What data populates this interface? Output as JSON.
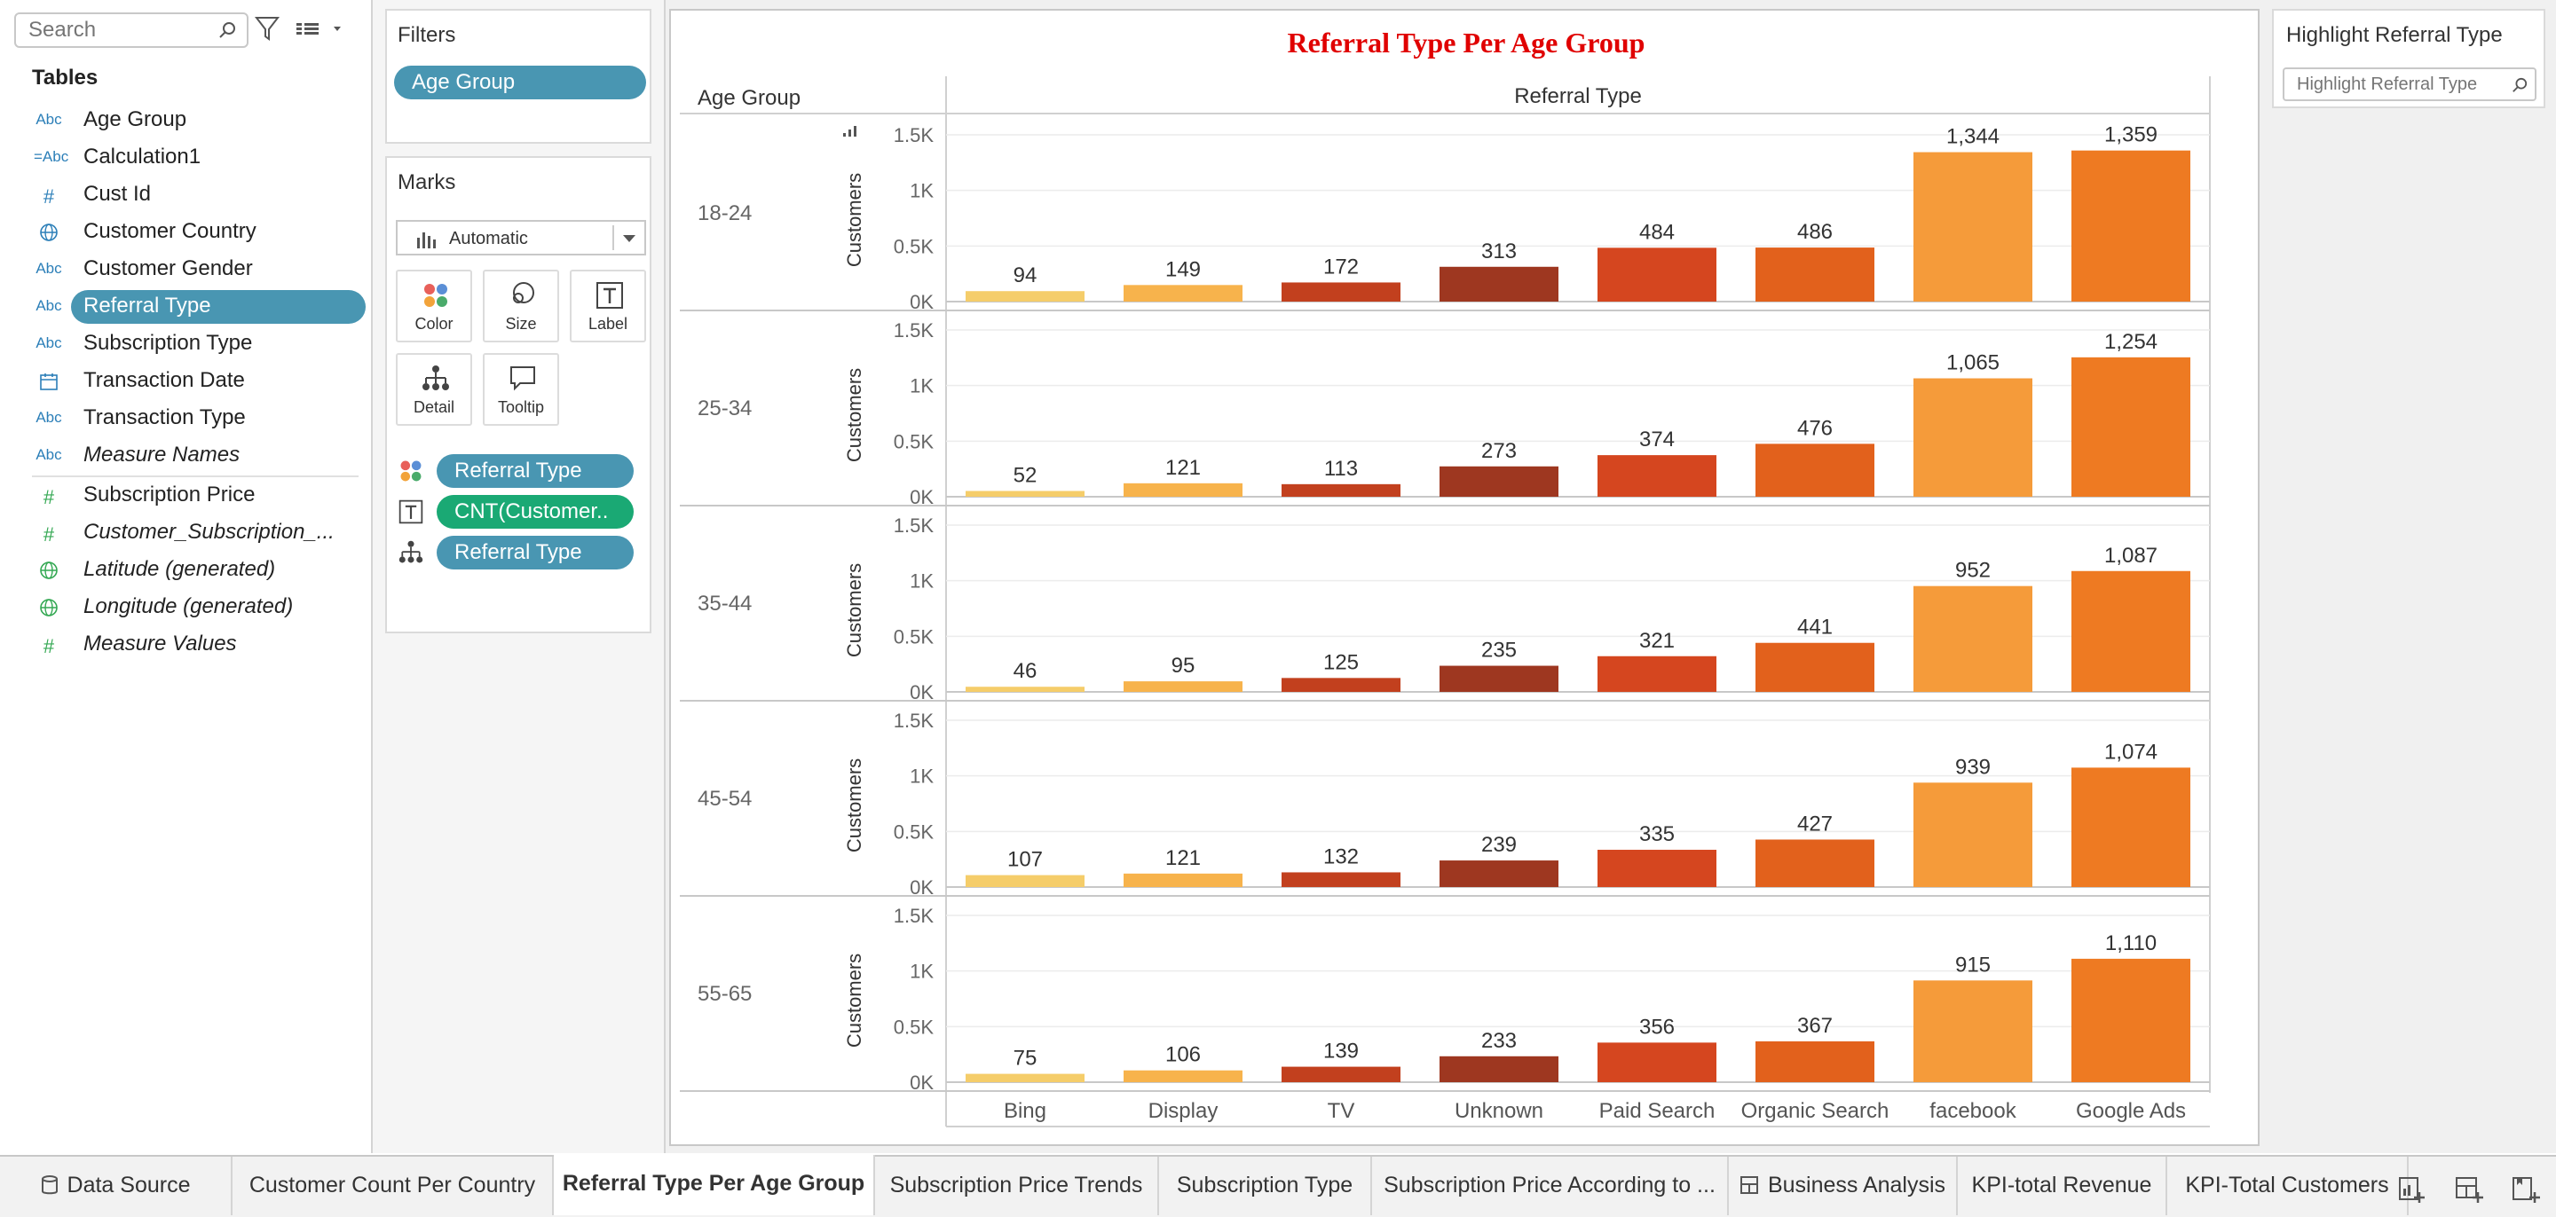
{
  "data_pane": {
    "search_placeholder": "Search",
    "tables_heading": "Tables",
    "fields": [
      {
        "type": "Abc",
        "name": "Age Group",
        "icon": "string-icon"
      },
      {
        "type": "=Abc",
        "name": "Calculation1",
        "icon": "calc-string-icon"
      },
      {
        "type": "#",
        "name": "Cust Id",
        "icon": "number-icon"
      },
      {
        "type": "globe",
        "name": "Customer Country",
        "icon": "globe-icon"
      },
      {
        "type": "Abc",
        "name": "Customer Gender",
        "icon": "string-icon"
      },
      {
        "type": "Abc",
        "name": "Referral Type",
        "icon": "string-icon",
        "selected": true
      },
      {
        "type": "Abc",
        "name": "Subscription Type",
        "icon": "string-icon"
      },
      {
        "type": "date",
        "name": "Transaction Date",
        "icon": "calendar-icon"
      },
      {
        "type": "Abc",
        "name": "Transaction Type",
        "icon": "string-icon"
      },
      {
        "type": "Abc",
        "name": "Measure Names",
        "icon": "string-icon",
        "italic": true
      }
    ],
    "measures": [
      {
        "type": "#",
        "name": "Subscription Price",
        "icon": "number-icon"
      },
      {
        "type": "#",
        "name": "Customer_Subscription_...",
        "icon": "number-icon",
        "italic": true
      },
      {
        "type": "globe",
        "name": "Latitude (generated)",
        "icon": "globe-icon",
        "italic": true
      },
      {
        "type": "globe",
        "name": "Longitude (generated)",
        "icon": "globe-icon",
        "italic": true
      },
      {
        "type": "#",
        "name": "Measure Values",
        "icon": "number-icon",
        "italic": true
      }
    ]
  },
  "filters": {
    "heading": "Filters",
    "pills": [
      "Age Group"
    ]
  },
  "marks": {
    "heading": "Marks",
    "mark_type": "Automatic",
    "buttons": [
      "Color",
      "Size",
      "Label",
      "Detail",
      "Tooltip"
    ],
    "pills": [
      {
        "icon": "color-icon",
        "label": "Referral Type",
        "kind": "dimension"
      },
      {
        "icon": "label-icon",
        "label": "CNT(Customer..",
        "kind": "measure"
      },
      {
        "icon": "detail-icon",
        "label": "Referral Type",
        "kind": "dimension"
      }
    ]
  },
  "view": {
    "title": "Referral Type Per Age Group",
    "row_header": "Age Group",
    "column_header": "Referral Type"
  },
  "highlight": {
    "title": "Highlight Referral Type",
    "placeholder": "Highlight Referral Type"
  },
  "chart_data": {
    "type": "bar",
    "title": "Referral Type Per Age Group",
    "xlabel": "Referral Type",
    "ylabel": "Customers",
    "row_dimension": "Age Group",
    "categories": [
      "Bing",
      "Display",
      "TV",
      "Unknown",
      "Paid Search",
      "Organic Search",
      "facebook",
      "Google Ads"
    ],
    "colors": [
      "#f5cd6a",
      "#f7b34c",
      "#c2401e",
      "#9e3720",
      "#d5461f",
      "#e2611c",
      "#f59b3a",
      "#ee7a22"
    ],
    "yticks": [
      "0K",
      "0.5K",
      "1K",
      "1.5K"
    ],
    "ylim": [
      0,
      1500
    ],
    "panels": [
      {
        "row": "18-24",
        "values": [
          94,
          149,
          172,
          313,
          484,
          486,
          1344,
          1359
        ],
        "labels": [
          "94",
          "149",
          "172",
          "313",
          "484",
          "486",
          "1,344",
          "1,359"
        ]
      },
      {
        "row": "25-34",
        "values": [
          52,
          121,
          113,
          273,
          374,
          476,
          1065,
          1254
        ],
        "labels": [
          "52",
          "121",
          "113",
          "273",
          "374",
          "476",
          "1,065",
          "1,254"
        ]
      },
      {
        "row": "35-44",
        "values": [
          46,
          95,
          125,
          235,
          321,
          441,
          952,
          1087
        ],
        "labels": [
          "46",
          "95",
          "125",
          "235",
          "321",
          "441",
          "952",
          "1,087"
        ]
      },
      {
        "row": "45-54",
        "values": [
          107,
          121,
          132,
          239,
          335,
          427,
          939,
          1074
        ],
        "labels": [
          "107",
          "121",
          "132",
          "239",
          "335",
          "427",
          "939",
          "1,074"
        ]
      },
      {
        "row": "55-65",
        "values": [
          75,
          106,
          139,
          233,
          356,
          367,
          915,
          1110
        ],
        "labels": [
          "75",
          "106",
          "139",
          "233",
          "356",
          "367",
          "915",
          "1,110"
        ]
      }
    ],
    "grid": true,
    "legend": "none"
  },
  "tabs": [
    {
      "label": "Data Source",
      "icon": "database-icon"
    },
    {
      "label": "Customer Count Per Country"
    },
    {
      "label": "Referral Type Per Age Group",
      "active": true
    },
    {
      "label": "Subscription Price Trends"
    },
    {
      "label": "Subscription Type"
    },
    {
      "label": "Subscription Price According to ..."
    },
    {
      "label": "Business Analysis",
      "icon": "dashboard-icon"
    },
    {
      "label": "KPI-total Revenue"
    },
    {
      "label": "KPI-Total Customers"
    }
  ]
}
